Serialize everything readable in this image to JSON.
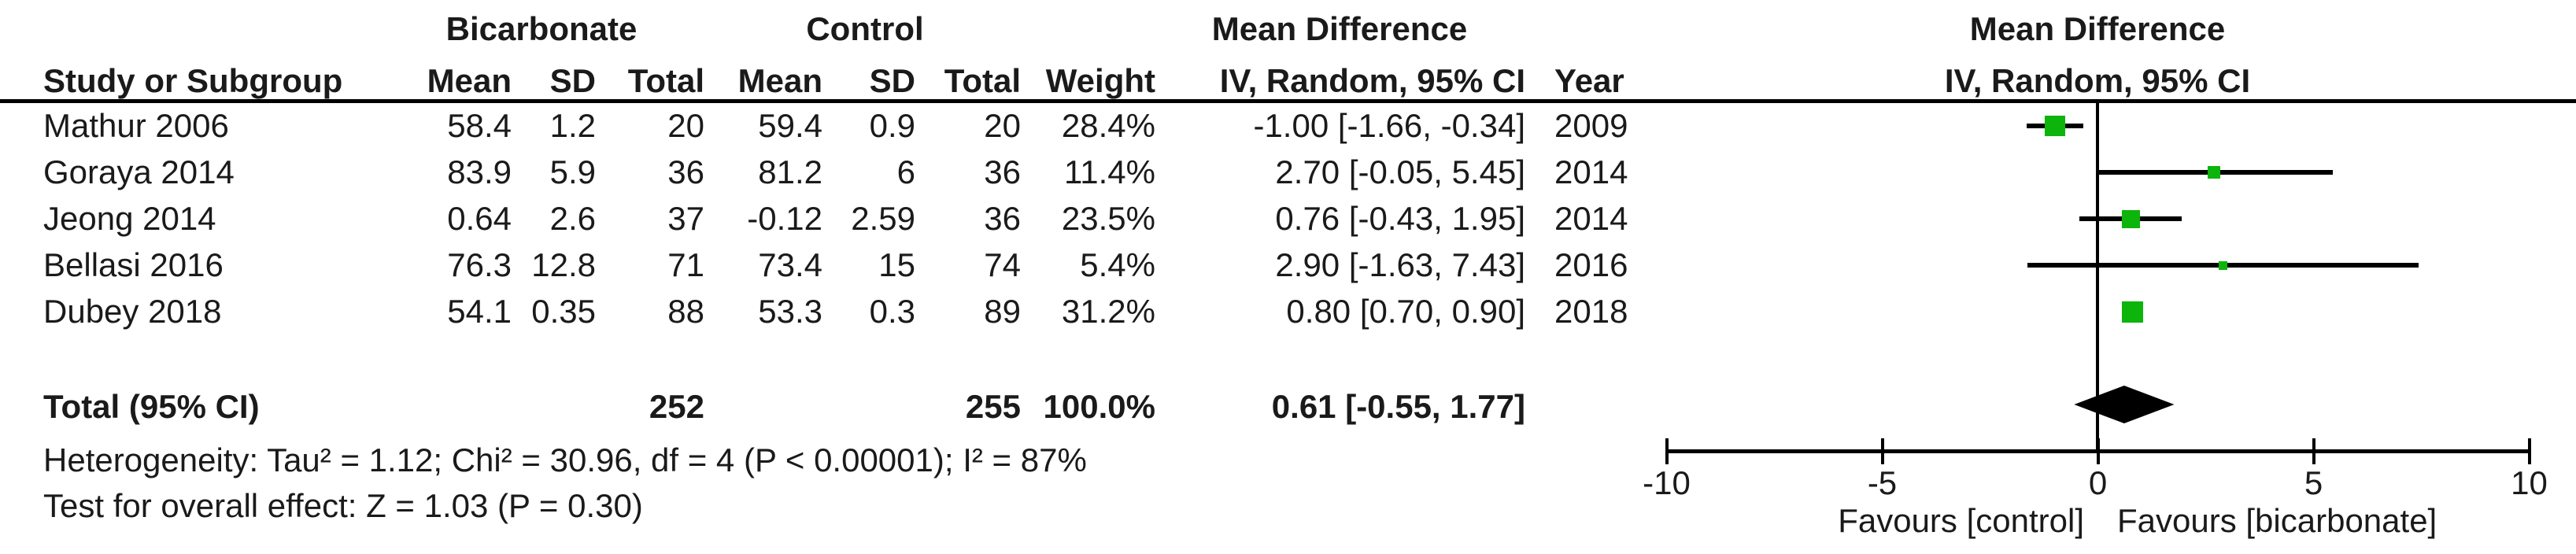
{
  "table": {
    "group_headers": {
      "bicarbonate": "Bicarbonate",
      "control": "Control",
      "mean_difference_text": "Mean Difference",
      "mean_difference_plot": "Mean Difference"
    },
    "column_headers": {
      "study": "Study or Subgroup",
      "mean1": "Mean",
      "sd1": "SD",
      "total1": "Total",
      "mean2": "Mean",
      "sd2": "SD",
      "total2": "Total",
      "weight": "Weight",
      "ci": "IV, Random, 95% CI",
      "year": "Year",
      "ci_plot": "IV, Random, 95% CI"
    },
    "rows": [
      {
        "study": "Mathur 2006",
        "mean1": "58.4",
        "sd1": "1.2",
        "total1": "20",
        "mean2": "59.4",
        "sd2": "0.9",
        "total2": "20",
        "weight": "28.4%",
        "ci": "-1.00 [-1.66, -0.34]",
        "year": "2009"
      },
      {
        "study": "Goraya 2014",
        "mean1": "83.9",
        "sd1": "5.9",
        "total1": "36",
        "mean2": "81.2",
        "sd2": "6",
        "total2": "36",
        "weight": "11.4%",
        "ci": "2.70 [-0.05, 5.45]",
        "year": "2014"
      },
      {
        "study": "Jeong 2014",
        "mean1": "0.64",
        "sd1": "2.6",
        "total1": "37",
        "mean2": "-0.12",
        "sd2": "2.59",
        "total2": "36",
        "weight": "23.5%",
        "ci": "0.76 [-0.43, 1.95]",
        "year": "2014"
      },
      {
        "study": "Bellasi 2016",
        "mean1": "76.3",
        "sd1": "12.8",
        "total1": "71",
        "mean2": "73.4",
        "sd2": "15",
        "total2": "74",
        "weight": "5.4%",
        "ci": "2.90 [-1.63, 7.43]",
        "year": "2016"
      },
      {
        "study": "Dubey 2018",
        "mean1": "54.1",
        "sd1": "0.35",
        "total1": "88",
        "mean2": "53.3",
        "sd2": "0.3",
        "total2": "89",
        "weight": "31.2%",
        "ci": "0.80 [0.70, 0.90]",
        "year": "2018"
      }
    ],
    "total_row": {
      "label": "Total (95% CI)",
      "total1": "252",
      "total2": "255",
      "weight": "100.0%",
      "ci": "0.61 [-0.55, 1.77]"
    },
    "heterogeneity": "Heterogeneity: Tau² = 1.12; Chi² = 30.96, df = 4 (P < 0.00001); I² = 87%",
    "overall_effect": "Test for overall effect: Z = 1.03 (P = 0.30)"
  },
  "plot": {
    "favours_left": "Favours [control]",
    "favours_right": "Favours [bicarbonate]",
    "colors": {
      "square": "#0CB40C",
      "ci_line": "#000000",
      "diamond": "#000000",
      "axis": "#000000"
    }
  },
  "chart_data": {
    "type": "forest",
    "title": "Mean Difference IV, Random, 95% CI",
    "effect_measure": "Mean Difference (IV, Random, 95% CI)",
    "x_axis": {
      "min": -10,
      "max": 10,
      "ticks": [
        -10,
        -5,
        0,
        5,
        10
      ],
      "label_left": "Favours [control]",
      "label_right": "Favours [bicarbonate]"
    },
    "studies": [
      {
        "name": "Mathur 2006",
        "md": -1.0,
        "ci_low": -1.66,
        "ci_high": -0.34,
        "weight_pct": 28.4,
        "year": 2009
      },
      {
        "name": "Goraya 2014",
        "md": 2.7,
        "ci_low": -0.05,
        "ci_high": 5.45,
        "weight_pct": 11.4,
        "year": 2014
      },
      {
        "name": "Jeong 2014",
        "md": 0.76,
        "ci_low": -0.43,
        "ci_high": 1.95,
        "weight_pct": 23.5,
        "year": 2014
      },
      {
        "name": "Bellasi 2016",
        "md": 2.9,
        "ci_low": -1.63,
        "ci_high": 7.43,
        "weight_pct": 5.4,
        "year": 2016
      },
      {
        "name": "Dubey 2018",
        "md": 0.8,
        "ci_low": 0.7,
        "ci_high": 0.9,
        "weight_pct": 31.2,
        "year": 2018
      }
    ],
    "overall": {
      "md": 0.61,
      "ci_low": -0.55,
      "ci_high": 1.77,
      "heterogeneity": {
        "tau2": 1.12,
        "chi2": 30.96,
        "df": 4,
        "p": "< 0.00001",
        "i2_pct": 87
      },
      "test_overall": {
        "z": 1.03,
        "p": 0.3
      }
    }
  }
}
